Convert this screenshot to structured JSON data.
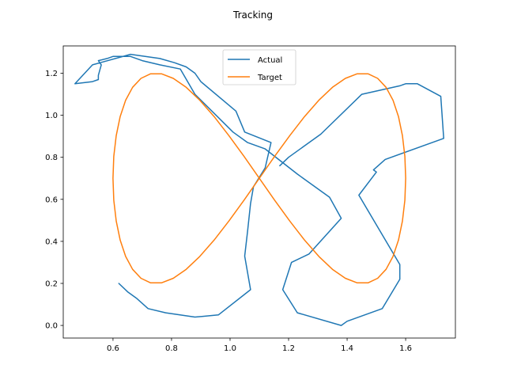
{
  "chart_data": {
    "type": "line",
    "title": "Tracking",
    "xlabel": "",
    "ylabel": "",
    "xlim": [
      0.43,
      1.77
    ],
    "ylim": [
      -0.06,
      1.33
    ],
    "xticks": [
      0.6,
      0.8,
      1.0,
      1.2,
      1.4,
      1.6
    ],
    "xtick_labels": [
      "0.6",
      "0.8",
      "1.0",
      "1.2",
      "1.4",
      "1.6"
    ],
    "yticks": [
      0.0,
      0.2,
      0.4,
      0.6,
      0.8,
      1.0,
      1.2
    ],
    "ytick_labels": [
      "0.0",
      "0.2",
      "0.4",
      "0.6",
      "0.8",
      "1.0",
      "1.2"
    ],
    "grid": false,
    "legend_position": "top-center",
    "series": [
      {
        "name": "Actual",
        "color": "#1f77b4",
        "x": [
          1.17,
          1.2,
          1.31,
          1.45,
          1.58,
          1.6,
          1.64,
          1.72,
          1.73,
          1.53,
          1.49,
          1.5,
          1.44,
          1.58,
          1.58,
          1.52,
          1.4,
          1.38,
          1.23,
          1.18,
          1.21,
          1.27,
          1.38,
          1.34,
          1.23,
          1.12,
          1.06,
          1.01,
          0.88,
          0.83,
          0.76,
          0.7,
          0.66,
          0.6,
          0.58,
          0.55,
          0.56,
          0.55,
          0.55,
          0.53,
          0.47,
          0.53,
          0.66,
          0.76,
          0.81,
          0.85,
          0.88,
          0.9,
          1.02,
          1.05,
          1.14,
          1.12,
          1.08,
          1.07,
          1.06,
          1.05,
          1.07,
          0.96,
          0.88,
          0.78,
          0.72,
          0.68,
          0.65,
          0.62
        ],
        "y": [
          0.76,
          0.8,
          0.91,
          1.1,
          1.14,
          1.15,
          1.15,
          1.09,
          0.89,
          0.79,
          0.74,
          0.73,
          0.62,
          0.29,
          0.22,
          0.08,
          0.02,
          0.0,
          0.06,
          0.17,
          0.3,
          0.34,
          0.51,
          0.61,
          0.72,
          0.84,
          0.87,
          0.92,
          1.1,
          1.22,
          1.24,
          1.26,
          1.28,
          1.28,
          1.27,
          1.26,
          1.24,
          1.19,
          1.17,
          1.16,
          1.15,
          1.24,
          1.29,
          1.27,
          1.25,
          1.23,
          1.2,
          1.16,
          1.02,
          0.92,
          0.87,
          0.75,
          0.66,
          0.58,
          0.45,
          0.33,
          0.17,
          0.05,
          0.04,
          0.06,
          0.08,
          0.13,
          0.16,
          0.2
        ]
      },
      {
        "name": "Target",
        "color": "#ff7f0e",
        "param_curve": "figure-eight",
        "center": [
          1.1,
          0.7
        ],
        "amplitude": [
          0.5,
          0.5
        ]
      }
    ]
  }
}
